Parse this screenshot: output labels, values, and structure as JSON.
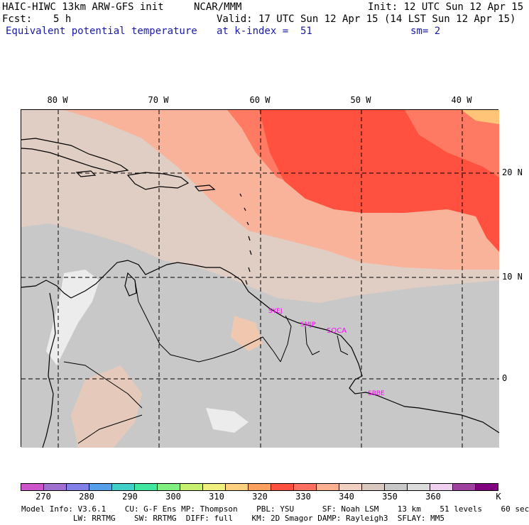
{
  "header": {
    "model_line": "HAIC-HIWC 13km ARW-GFS init",
    "org": "NCAR/MMM",
    "init": "Init: 12 UTC Sun 12 Apr 15",
    "fcst_label": "Fcst:",
    "fcst_value": "5 h",
    "valid": "Valid: 17 UTC Sun 12 Apr 15 (14 LST Sun 12 Apr 15)",
    "field_name": "Equivalent potential temperature",
    "level": "at k-index =  51",
    "smoothing": "sm= 2"
  },
  "map": {
    "lon_labels": [
      "80 W",
      "70 W",
      "60 W",
      "50 W",
      "40 W"
    ],
    "lat_labels": [
      "20 N",
      "10 N",
      "0"
    ],
    "stations": [
      "SYEJ",
      "SMJP",
      "SOCA",
      "SBBE"
    ],
    "colors": {
      "background": "#c8c8c8",
      "coast": "#000000",
      "grid": "#000000",
      "station": "#ff00ff"
    }
  },
  "colorbar": {
    "labels": [
      "270",
      "280",
      "290",
      "300",
      "310",
      "320",
      "330",
      "340",
      "350",
      "360",
      "K"
    ],
    "colors": [
      "#cc55cc",
      "#a070d0",
      "#8080e8",
      "#55a0e8",
      "#40d0c8",
      "#40e8a0",
      "#80f080",
      "#c8f070",
      "#f0f080",
      "#ffd080",
      "#ffa060",
      "#ff5040",
      "#ff7060",
      "#ffb090",
      "#f0d0c0",
      "#d8c8c0",
      "#c8c8c8",
      "#dcdcdc",
      "#f0d0f0",
      "#a040a0",
      "#800080"
    ]
  },
  "footer": {
    "line1": "Model Info: V3.6.1    CU: G-F Ens MP: Thompson    PBL: YSU      SF: Noah LSM    13 km    51 levels    60 sec",
    "line2": "           LW: RRTMG    SW: RRTMG  DIFF: full    KM: 2D Smagor DAMP: Rayleigh3  SFLAY: MM5"
  }
}
